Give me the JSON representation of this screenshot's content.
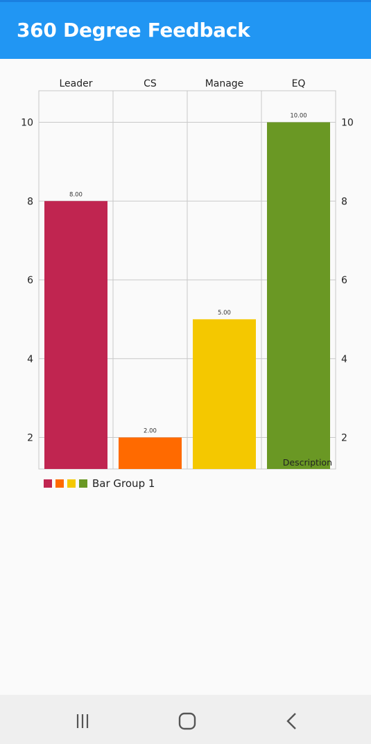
{
  "app": {
    "title": "360 Degree Feedback"
  },
  "chart_data": {
    "type": "bar",
    "categories": [
      "Leader",
      "CS",
      "Manage",
      "EQ"
    ],
    "values": [
      8,
      2,
      5,
      10
    ],
    "value_labels": [
      "8.00",
      "2.00",
      "5.00",
      "10.00"
    ],
    "colors": [
      "#c02550",
      "#ff6a00",
      "#f4c800",
      "#6a9824"
    ],
    "y_ticks": [
      "2",
      "4",
      "6",
      "8",
      "10"
    ],
    "ylim": [
      1.2,
      10.8
    ],
    "grid": true,
    "legend": {
      "label": "Bar Group 1",
      "position": "bottom-left"
    },
    "description": "Description"
  },
  "nav": {
    "recents_icon": "recents-icon",
    "home_icon": "home-icon",
    "back_icon": "back-icon"
  }
}
